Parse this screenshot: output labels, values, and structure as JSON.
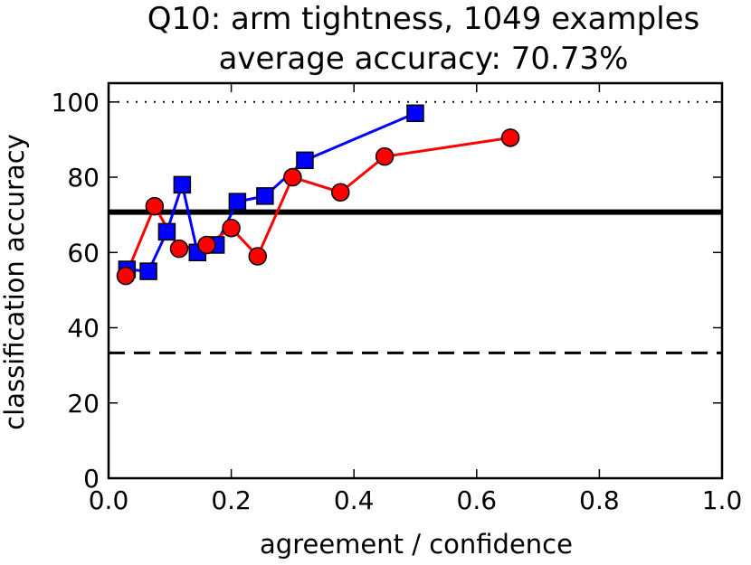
{
  "chart_data": {
    "type": "line",
    "title_line1": "Q10: arm tightness, 1049 examples",
    "title_line2": "average accuracy: 70.73%",
    "xlabel": "agreement / confidence",
    "ylabel": "classification accuracy",
    "xlim": [
      0.0,
      1.0
    ],
    "ylim": [
      0,
      105
    ],
    "xticks": [
      0.0,
      0.2,
      0.4,
      0.6,
      0.8,
      1.0
    ],
    "xtick_labels": [
      "0.0",
      "0.2",
      "0.4",
      "0.6",
      "0.8",
      "1.0"
    ],
    "yticks": [
      0,
      20,
      40,
      60,
      80,
      100
    ],
    "ytick_labels": [
      "0",
      "20",
      "40",
      "60",
      "80",
      "100"
    ],
    "grid": false,
    "reference_lines": [
      {
        "style": "dotted",
        "y": 100,
        "color": "#000000"
      },
      {
        "style": "solid-thick",
        "y": 70.73,
        "color": "#000000"
      },
      {
        "style": "dashed",
        "y": 33.3,
        "color": "#000000"
      }
    ],
    "series": [
      {
        "marker": "square",
        "color": "#0000ff",
        "x": [
          0.03,
          0.065,
          0.095,
          0.12,
          0.145,
          0.175,
          0.21,
          0.255,
          0.32,
          0.5
        ],
        "y": [
          55.5,
          55.0,
          65.5,
          78.0,
          60.0,
          62.0,
          73.5,
          75.0,
          84.5,
          97.0
        ]
      },
      {
        "marker": "circle",
        "color": "#ff0000",
        "x": [
          0.028,
          0.075,
          0.115,
          0.16,
          0.2,
          0.243,
          0.3,
          0.378,
          0.45,
          0.655
        ],
        "y": [
          53.8,
          72.3,
          61.0,
          62.0,
          66.5,
          59.0,
          80.0,
          76.0,
          85.5,
          90.5
        ]
      }
    ]
  }
}
